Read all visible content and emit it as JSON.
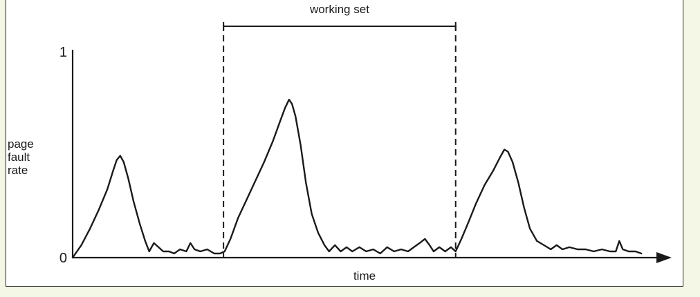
{
  "colors": {
    "background": "#f4f6e6",
    "figure_bg": "#ffffff",
    "ink": "#1a1a1a"
  },
  "chart_data": {
    "type": "line",
    "title": "",
    "xlabel": "time",
    "ylabel": [
      "page",
      "fault",
      "rate"
    ],
    "yticks": [
      "0",
      "1"
    ],
    "ylim": [
      0,
      1
    ],
    "xlim": [
      0,
      100
    ],
    "grid": false,
    "annotation": {
      "label": "working set",
      "x_start": 26,
      "x_end": 66,
      "style": "dashed vertical lines with horizontal bracket"
    },
    "series": [
      {
        "values": [
          [
            0,
            0.0
          ],
          [
            1.5,
            0.06
          ],
          [
            3,
            0.14
          ],
          [
            4.5,
            0.23
          ],
          [
            6,
            0.33
          ],
          [
            7,
            0.42
          ],
          [
            7.6,
            0.47
          ],
          [
            8.2,
            0.49
          ],
          [
            8.8,
            0.46
          ],
          [
            9.6,
            0.38
          ],
          [
            10.5,
            0.27
          ],
          [
            11.6,
            0.16
          ],
          [
            12.5,
            0.08
          ],
          [
            13.2,
            0.03
          ],
          [
            14,
            0.07
          ],
          [
            14.8,
            0.05
          ],
          [
            15.6,
            0.03
          ],
          [
            16.6,
            0.03
          ],
          [
            17.5,
            0.02
          ],
          [
            18.5,
            0.04
          ],
          [
            19.6,
            0.03
          ],
          [
            20.3,
            0.07
          ],
          [
            21,
            0.04
          ],
          [
            22,
            0.03
          ],
          [
            23.2,
            0.04
          ],
          [
            24.4,
            0.02
          ],
          [
            25.4,
            0.02
          ],
          [
            26.2,
            0.03
          ],
          [
            27.2,
            0.09
          ],
          [
            28.5,
            0.19
          ],
          [
            30,
            0.28
          ],
          [
            31.5,
            0.37
          ],
          [
            33,
            0.46
          ],
          [
            34.5,
            0.56
          ],
          [
            35.8,
            0.66
          ],
          [
            36.6,
            0.72
          ],
          [
            37.3,
            0.76
          ],
          [
            37.8,
            0.74
          ],
          [
            38.4,
            0.68
          ],
          [
            39.3,
            0.54
          ],
          [
            40.2,
            0.36
          ],
          [
            41.2,
            0.21
          ],
          [
            42.3,
            0.12
          ],
          [
            43.4,
            0.06
          ],
          [
            44.2,
            0.03
          ],
          [
            45.2,
            0.06
          ],
          [
            46.2,
            0.03
          ],
          [
            47.2,
            0.05
          ],
          [
            48.2,
            0.03
          ],
          [
            49.4,
            0.05
          ],
          [
            50.6,
            0.03
          ],
          [
            51.8,
            0.04
          ],
          [
            53,
            0.02
          ],
          [
            54.2,
            0.05
          ],
          [
            55.4,
            0.03
          ],
          [
            56.6,
            0.04
          ],
          [
            57.8,
            0.03
          ],
          [
            58.8,
            0.05
          ],
          [
            59.8,
            0.07
          ],
          [
            60.7,
            0.09
          ],
          [
            61.5,
            0.06
          ],
          [
            62.2,
            0.03
          ],
          [
            63.2,
            0.05
          ],
          [
            64.2,
            0.03
          ],
          [
            65.2,
            0.05
          ],
          [
            66,
            0.03
          ],
          [
            67,
            0.09
          ],
          [
            68.2,
            0.17
          ],
          [
            69.5,
            0.26
          ],
          [
            71,
            0.35
          ],
          [
            72.5,
            0.42
          ],
          [
            73.6,
            0.48
          ],
          [
            74.4,
            0.52
          ],
          [
            75,
            0.51
          ],
          [
            75.8,
            0.46
          ],
          [
            76.8,
            0.36
          ],
          [
            77.8,
            0.24
          ],
          [
            78.8,
            0.14
          ],
          [
            80,
            0.08
          ],
          [
            81.2,
            0.06
          ],
          [
            82.4,
            0.04
          ],
          [
            83.4,
            0.06
          ],
          [
            84.4,
            0.04
          ],
          [
            85.6,
            0.05
          ],
          [
            87,
            0.04
          ],
          [
            88.4,
            0.04
          ],
          [
            89.8,
            0.03
          ],
          [
            91.2,
            0.04
          ],
          [
            92.6,
            0.03
          ],
          [
            93.6,
            0.03
          ],
          [
            94.2,
            0.08
          ],
          [
            94.8,
            0.04
          ],
          [
            95.8,
            0.03
          ],
          [
            97,
            0.03
          ],
          [
            98,
            0.02
          ]
        ]
      }
    ]
  }
}
